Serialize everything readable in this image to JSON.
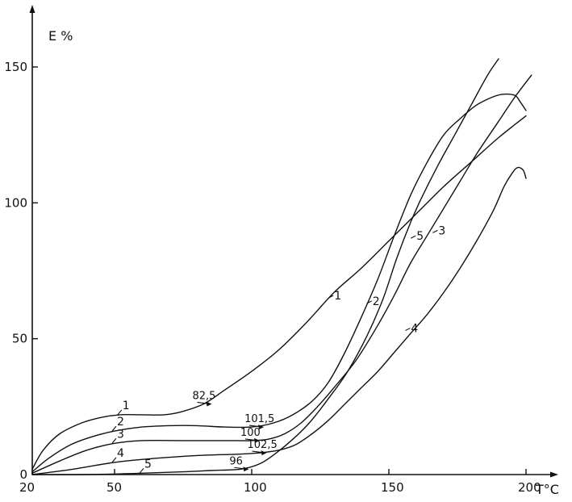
{
  "chart_data": {
    "type": "line",
    "title": "",
    "xlabel": "T°C",
    "ylabel": "E %",
    "xlim": [
      20,
      200
    ],
    "ylim": [
      0,
      150
    ],
    "x_ticks": [
      20,
      50,
      100,
      150,
      200
    ],
    "y_ticks": [
      0,
      50,
      100,
      150
    ],
    "grid": false,
    "series": [
      {
        "name": "1",
        "label_at": [
          128,
          65
        ],
        "points": [
          [
            20,
            2
          ],
          [
            24,
            9
          ],
          [
            30,
            15
          ],
          [
            38,
            19
          ],
          [
            45,
            21
          ],
          [
            52,
            22
          ],
          [
            60,
            22
          ],
          [
            68,
            22
          ],
          [
            74,
            23
          ],
          [
            82.5,
            26
          ],
          [
            90,
            31
          ],
          [
            100,
            38
          ],
          [
            110,
            46
          ],
          [
            120,
            56
          ],
          [
            130,
            67
          ],
          [
            140,
            76
          ],
          [
            150,
            86
          ],
          [
            160,
            96
          ],
          [
            170,
            106
          ],
          [
            180,
            115
          ],
          [
            190,
            124
          ],
          [
            200,
            132
          ]
        ]
      },
      {
        "name": "2",
        "label_at": [
          142,
          63
        ],
        "points": [
          [
            20,
            1
          ],
          [
            26,
            6
          ],
          [
            34,
            11
          ],
          [
            42,
            14
          ],
          [
            50,
            16
          ],
          [
            60,
            17.5
          ],
          [
            70,
            18
          ],
          [
            80,
            18
          ],
          [
            90,
            17.5
          ],
          [
            100,
            17.5
          ],
          [
            108,
            19
          ],
          [
            115,
            22
          ],
          [
            122,
            27
          ],
          [
            128,
            34
          ],
          [
            134,
            45
          ],
          [
            140,
            58
          ],
          [
            146,
            72
          ],
          [
            152,
            88
          ],
          [
            158,
            103
          ],
          [
            164,
            115
          ],
          [
            170,
            125
          ],
          [
            176,
            131
          ],
          [
            182,
            136
          ],
          [
            188,
            139
          ],
          [
            192,
            140
          ],
          [
            196,
            139.5
          ],
          [
            198,
            137
          ],
          [
            200,
            134
          ]
        ]
      },
      {
        "name": "3",
        "label_at": [
          166,
          89
        ],
        "points": [
          [
            20,
            0.5
          ],
          [
            30,
            5
          ],
          [
            40,
            9
          ],
          [
            50,
            11.5
          ],
          [
            60,
            12.5
          ],
          [
            75,
            12.5
          ],
          [
            90,
            12.5
          ],
          [
            100,
            12.5
          ],
          [
            106,
            13
          ],
          [
            112,
            15
          ],
          [
            118,
            19
          ],
          [
            124,
            25
          ],
          [
            130,
            32
          ],
          [
            138,
            42
          ],
          [
            146,
            55
          ],
          [
            152,
            66
          ],
          [
            158,
            78
          ],
          [
            164,
            88
          ],
          [
            170,
            98
          ],
          [
            176,
            108
          ],
          [
            182,
            118
          ],
          [
            190,
            130
          ],
          [
            196,
            139
          ],
          [
            202,
            147
          ]
        ]
      },
      {
        "name": "4",
        "label_at": [
          156,
          53
        ],
        "points": [
          [
            20,
            0
          ],
          [
            35,
            2
          ],
          [
            50,
            4.5
          ],
          [
            65,
            6
          ],
          [
            80,
            7
          ],
          [
            95,
            7.5
          ],
          [
            103,
            8
          ],
          [
            110,
            9
          ],
          [
            116,
            11
          ],
          [
            122,
            15
          ],
          [
            128,
            20
          ],
          [
            134,
            26
          ],
          [
            140,
            32
          ],
          [
            146,
            38
          ],
          [
            152,
            45
          ],
          [
            158,
            52
          ],
          [
            164,
            59
          ],
          [
            170,
            67
          ],
          [
            176,
            76
          ],
          [
            182,
            86
          ],
          [
            188,
            97
          ],
          [
            192,
            106
          ],
          [
            195,
            111
          ],
          [
            197,
            113
          ],
          [
            199,
            112
          ],
          [
            200,
            109
          ]
        ]
      },
      {
        "name": "5",
        "label_at": [
          158,
          87
        ],
        "points": [
          [
            20,
            0
          ],
          [
            40,
            0
          ],
          [
            60,
            0.5
          ],
          [
            75,
            1
          ],
          [
            85,
            1.5
          ],
          [
            96,
            2
          ],
          [
            103,
            4
          ],
          [
            109,
            8
          ],
          [
            115,
            13
          ],
          [
            121,
            19
          ],
          [
            128,
            28
          ],
          [
            135,
            38
          ],
          [
            142,
            51
          ],
          [
            148,
            65
          ],
          [
            153,
            80
          ],
          [
            158,
            93
          ],
          [
            162,
            102
          ],
          [
            168,
            114
          ],
          [
            174,
            125
          ],
          [
            180,
            136
          ],
          [
            186,
            147
          ],
          [
            190,
            153
          ]
        ]
      }
    ],
    "annotations": [
      {
        "text": "82,5",
        "at": [
          82.5,
          26
        ]
      },
      {
        "text": "101,5",
        "at": [
          101.5,
          17.5
        ]
      },
      {
        "text": "100",
        "at": [
          100,
          12.5
        ]
      },
      {
        "text": "102,5",
        "at": [
          102.5,
          8
        ]
      },
      {
        "text": "96",
        "at": [
          96,
          2
        ]
      }
    ]
  }
}
